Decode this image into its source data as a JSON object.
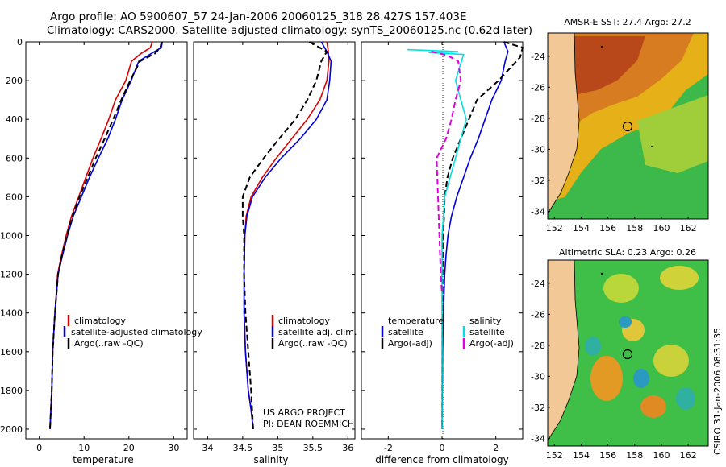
{
  "header": {
    "line1": "Argo profile: AO 5900607_57 24-Jan-2006 20060125_318 28.427S 157.403E",
    "line2": "Climatology: CARS2000. Satellite-adjusted climatology: synTS_20060125.nc (0.62d later)"
  },
  "footer": {
    "project": "US ARGO PROJECT",
    "pi": "PI: DEAN ROEMMICH",
    "stamp": "CSIRO 31-Jan-2006 08:31:35"
  },
  "chart_data": [
    {
      "type": "line",
      "id": "temperature",
      "xlabel": "temperature",
      "ylabel": "",
      "xlim": [
        -3,
        33
      ],
      "ylim": [
        2050,
        0
      ],
      "xticks": [
        0,
        10,
        20,
        30
      ],
      "yticks": [
        0,
        200,
        400,
        600,
        800,
        1000,
        1200,
        1400,
        1600,
        1800,
        2000
      ],
      "legend": [
        "climatology",
        "satellite-adjusted climatology",
        "Argo(..raw -QC)"
      ],
      "series": [
        {
          "name": "climatology",
          "color": "#dd0000",
          "dash": "solid",
          "x": [
            25.2,
            24.8,
            22.7,
            20.6,
            19.3,
            17.0,
            15.5,
            13.8,
            12.0,
            10.4,
            8.8,
            7.2,
            6.0,
            5.0,
            4.1,
            3.5,
            3.0,
            2.8,
            2.6,
            2.4
          ],
          "y": [
            0,
            30,
            60,
            100,
            200,
            300,
            400,
            500,
            600,
            700,
            800,
            900,
            1000,
            1100,
            1200,
            1400,
            1600,
            1800,
            1900,
            2000
          ]
        },
        {
          "name": "satellite-adjusted climatology",
          "color": "#0000dd",
          "dash": "solid",
          "x": [
            27.5,
            27.2,
            25.0,
            22.2,
            20.5,
            18.5,
            17.0,
            15.3,
            13.2,
            11.2,
            9.4,
            7.6,
            6.3,
            5.2,
            4.2,
            3.5,
            3.0,
            2.8,
            2.6,
            2.4
          ],
          "y": [
            0,
            30,
            60,
            100,
            200,
            300,
            400,
            500,
            600,
            700,
            800,
            900,
            1000,
            1100,
            1200,
            1400,
            1600,
            1800,
            1900,
            2000
          ]
        },
        {
          "name": "Argo(..raw -QC)",
          "color": "#000000",
          "dash": "dash",
          "x": [
            27.3,
            27.0,
            25.8,
            22.5,
            20.3,
            18.3,
            16.5,
            14.6,
            12.6,
            10.8,
            9.0,
            7.4,
            6.2,
            5.1,
            4.2,
            3.5,
            3.0,
            2.8,
            2.6,
            2.4
          ],
          "y": [
            0,
            30,
            60,
            100,
            200,
            300,
            400,
            500,
            600,
            700,
            800,
            900,
            1000,
            1100,
            1200,
            1400,
            1600,
            1800,
            1900,
            2000
          ]
        }
      ]
    },
    {
      "type": "line",
      "id": "salinity",
      "xlabel": "salinity",
      "xlim": [
        33.8,
        36.1
      ],
      "ylim": [
        2050,
        0
      ],
      "xticks": [
        34,
        34.5,
        35,
        35.5,
        36
      ],
      "legend": [
        "climatology",
        "satellite adj. clim.",
        "Argo(..raw -QC)"
      ],
      "series": [
        {
          "name": "climatology",
          "color": "#dd0000",
          "dash": "solid",
          "x": [
            35.7,
            35.72,
            35.73,
            35.7,
            35.6,
            35.42,
            35.2,
            34.98,
            34.78,
            34.62,
            34.55,
            34.53,
            34.52,
            34.52,
            34.54,
            34.58,
            34.62,
            34.65
          ],
          "y": [
            0,
            50,
            100,
            200,
            300,
            400,
            500,
            600,
            700,
            800,
            900,
            1000,
            1200,
            1400,
            1600,
            1800,
            1900,
            2000
          ]
        },
        {
          "name": "satellite adj. clim.",
          "color": "#0000dd",
          "dash": "solid",
          "x": [
            35.62,
            35.7,
            35.76,
            35.74,
            35.7,
            35.55,
            35.32,
            35.05,
            34.82,
            34.64,
            34.56,
            34.53,
            34.52,
            34.52,
            34.54,
            34.58,
            34.62,
            34.65
          ],
          "y": [
            0,
            50,
            100,
            200,
            300,
            400,
            500,
            600,
            700,
            800,
            900,
            1000,
            1200,
            1400,
            1600,
            1800,
            1900,
            2000
          ]
        },
        {
          "name": "Argo(..raw -QC)",
          "color": "#000000",
          "dash": "dash",
          "x": [
            35.45,
            35.7,
            35.62,
            35.55,
            35.42,
            35.25,
            35.02,
            34.8,
            34.6,
            34.5,
            34.5,
            34.52,
            34.52,
            34.54,
            34.58,
            34.62,
            34.65
          ],
          "y": [
            0,
            50,
            100,
            200,
            300,
            400,
            500,
            600,
            700,
            800,
            900,
            1000,
            1200,
            1400,
            1600,
            1800,
            2000
          ]
        }
      ]
    },
    {
      "type": "line",
      "id": "difference",
      "xlabel": "difference from climatology",
      "xlim": [
        -3,
        3
      ],
      "ylim": [
        2050,
        0
      ],
      "xticks": [
        -2,
        0,
        2
      ],
      "legend": [
        "temperature",
        "satellite",
        "Argo(-adj)",
        "salinity",
        "satellite",
        "Argo(-adj)"
      ],
      "series": [
        {
          "name": "temperature satellite",
          "color": "#0000dd",
          "dash": "solid",
          "x": [
            2.3,
            2.45,
            2.35,
            2.2,
            1.85,
            1.6,
            1.35,
            1.05,
            0.8,
            0.55,
            0.35,
            0.22,
            0.15,
            0.1,
            0.05,
            0.02,
            0.0
          ],
          "y": [
            0,
            50,
            100,
            200,
            300,
            400,
            500,
            600,
            700,
            800,
            900,
            1000,
            1100,
            1200,
            1400,
            1600,
            2000
          ]
        },
        {
          "name": "temperature Argo(-adj)",
          "color": "#000000",
          "dash": "dash",
          "x": [
            2.3,
            3.0,
            2.9,
            2.1,
            1.3,
            1.0,
            0.7,
            0.4,
            0.2,
            0.1,
            0.05,
            0.02,
            0.0
          ],
          "y": [
            0,
            30,
            80,
            200,
            300,
            400,
            500,
            600,
            700,
            800,
            1000,
            1200,
            2000
          ]
        },
        {
          "name": "salinity satellite",
          "color": "#00e0e0",
          "dash": "solid",
          "x": [
            -1.3,
            0.6,
            -0.5,
            0.8,
            0.5,
            0.9,
            0.7,
            0.5,
            0.3,
            0.1,
            0.05,
            0.0,
            0.0
          ],
          "y": [
            40,
            50,
            55,
            65,
            200,
            400,
            500,
            600,
            700,
            800,
            900,
            1000,
            2000
          ]
        },
        {
          "name": "salinity Argo(-adj)",
          "color": "#e000e0",
          "dash": "dash",
          "x": [
            -0.4,
            0.2,
            0.6,
            0.7,
            0.5,
            0.35,
            0.15,
            -0.2,
            -0.15,
            -0.1,
            -0.05,
            0.0
          ],
          "y": [
            50,
            70,
            100,
            200,
            300,
            400,
            500,
            600,
            800,
            1000,
            1200,
            1300
          ]
        }
      ]
    },
    {
      "type": "heatmap",
      "id": "sst-map",
      "title": "AMSR-E SST: 27.4 Argo: 27.2",
      "xticks": [
        152,
        154,
        156,
        158,
        160,
        162
      ],
      "yticks": [
        -24,
        -26,
        -28,
        -30,
        -32,
        -34
      ],
      "xlim": [
        151.5,
        163.5
      ],
      "ylim": [
        -34.5,
        -22.5
      ],
      "argo_position": {
        "lon": 157.403,
        "lat": -28.427
      }
    },
    {
      "type": "heatmap",
      "id": "sla-map",
      "title": "Altimetric SLA: 0.23 Argo: 0.26",
      "xticks": [
        152,
        154,
        156,
        158,
        160,
        162
      ],
      "yticks": [
        -24,
        -26,
        -28,
        -30,
        -32,
        -34
      ],
      "xlim": [
        151.5,
        163.5
      ],
      "ylim": [
        -34.5,
        -22.5
      ],
      "argo_position": {
        "lon": 157.403,
        "lat": -28.427
      }
    }
  ]
}
